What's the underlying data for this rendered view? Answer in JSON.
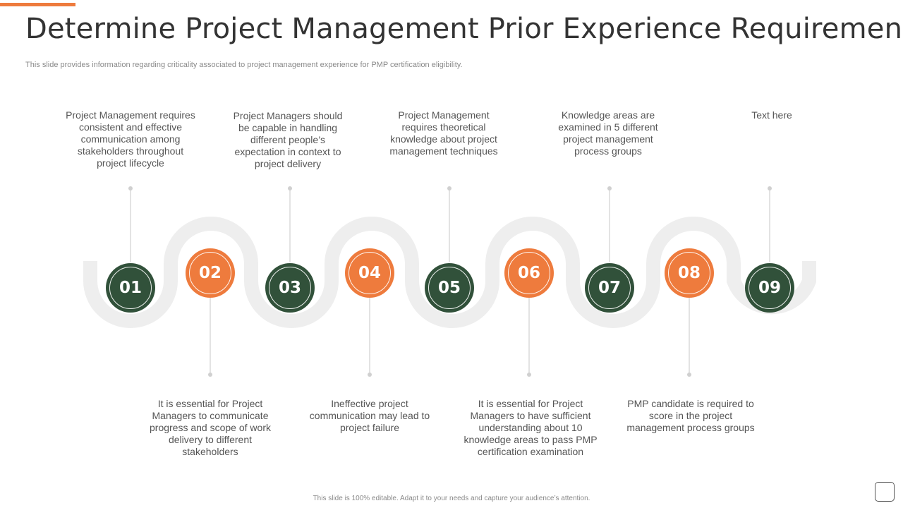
{
  "slide": {
    "title": "Determine Project Management Prior Experience Requirement",
    "subtitle": "This slide provides information regarding criticality associated to project management experience for PMP certification eligibility.",
    "footer": "This slide is 100% editable. Adapt it to your needs and capture your audience’s attention."
  },
  "colors": {
    "accent": "#ee7b3d",
    "dark": "#31513a",
    "wave": "#eeeeee",
    "connector": "#d0d0d0"
  },
  "steps": [
    {
      "number": "01",
      "text": "Project Management requires consistent and effective communication among stakeholders throughout project lifecycle"
    },
    {
      "number": "02",
      "text": "It is essential for Project Managers to communicate progress and scope of work delivery to different stakeholders"
    },
    {
      "number": "03",
      "text": "Project Managers should be capable in handling different people’s expectation in context to project delivery"
    },
    {
      "number": "04",
      "text": "Ineffective project communication may lead to project failure"
    },
    {
      "number": "05",
      "text": "Project Management requires theoretical knowledge about project management techniques"
    },
    {
      "number": "06",
      "text": "It is essential for Project Managers to have sufficient understanding about 10 knowledge areas to pass PMP certification examination"
    },
    {
      "number": "07",
      "text": "Knowledge areas are examined in 5 different project management process groups"
    },
    {
      "number": "08",
      "text": "PMP candidate is required to score in the project management process groups"
    },
    {
      "number": "09",
      "text": "Text here"
    }
  ]
}
